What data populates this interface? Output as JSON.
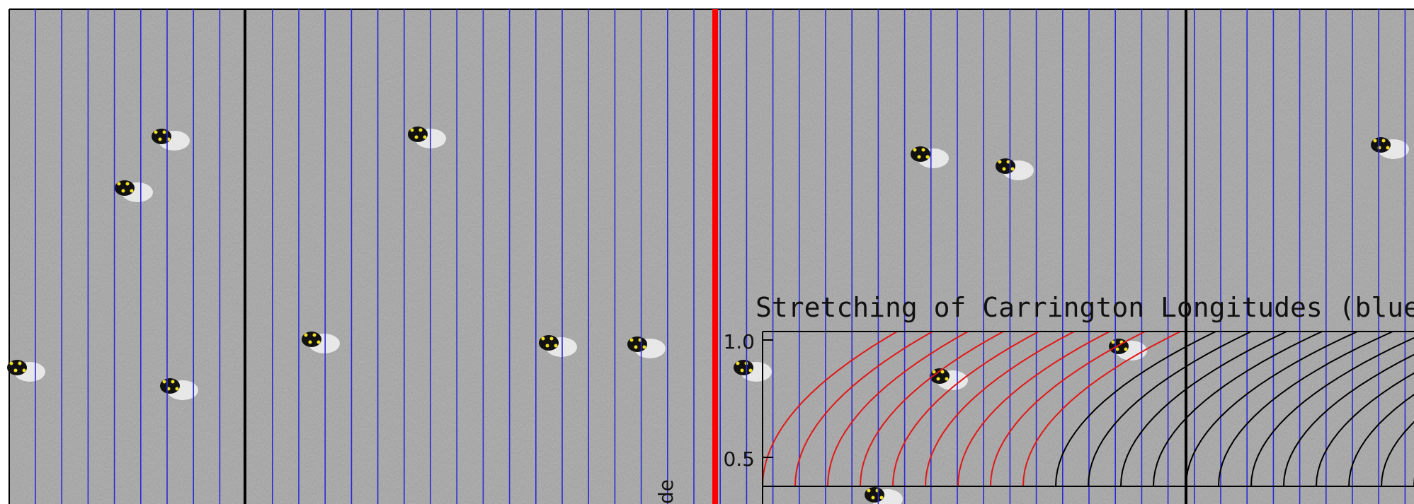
{
  "inset": {
    "title": "Stretching of Carrington Longitudes (blue",
    "y_ticks": [
      "1.0",
      "0.5"
    ],
    "y_label": "de"
  }
}
